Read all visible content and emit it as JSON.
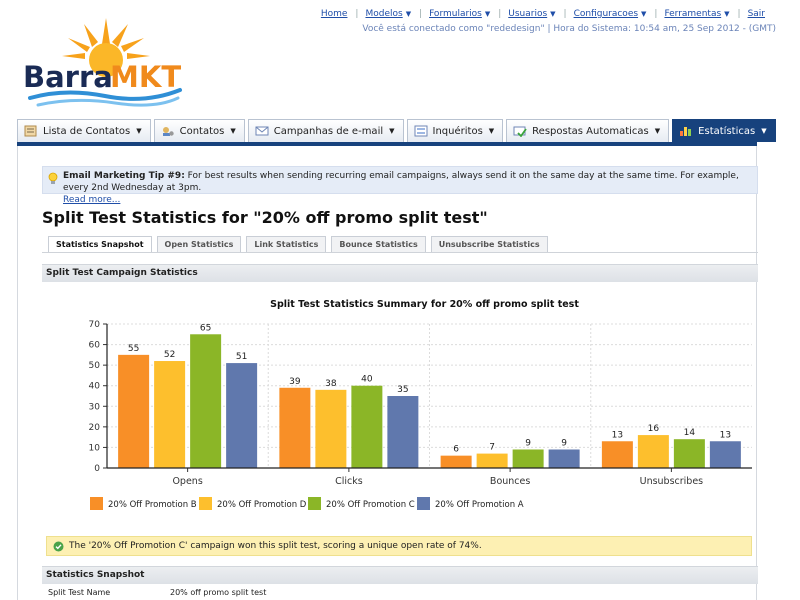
{
  "toplinks": [
    {
      "label": "Home",
      "caret": false
    },
    {
      "label": "Modelos",
      "caret": true
    },
    {
      "label": "Formularios",
      "caret": true
    },
    {
      "label": "Usuarios",
      "caret": true
    },
    {
      "label": "Configuracoes",
      "caret": true
    },
    {
      "label": "Ferramentas",
      "caret": true
    },
    {
      "label": "Sair",
      "caret": false
    }
  ],
  "status_text": "Você está conectado como \"rededesign\" | Hora do Sistema: 10:54 am, 25 Sep 2012 - (GMT)",
  "logo": {
    "text_main": "Barra",
    "text_accent": "MKT",
    "color_main": "#1a2b55",
    "color_accent": "#f08a1c"
  },
  "nav": [
    {
      "label": "Lista de Contatos",
      "icon": "contacts-icon",
      "active": false
    },
    {
      "label": "Contatos",
      "icon": "contacts-gear-icon",
      "active": false
    },
    {
      "label": "Campanhas de e-mail",
      "icon": "envelope-icon",
      "active": false
    },
    {
      "label": "Inquéritos",
      "icon": "survey-icon",
      "active": false
    },
    {
      "label": "Respostas Automaticas",
      "icon": "autoresponder-icon",
      "active": false
    },
    {
      "label": "Estatísticas",
      "icon": "bar-chart-icon",
      "active": true
    }
  ],
  "tip": {
    "title": "Email Marketing Tip #9:",
    "text": " For best results when sending recurring email campaigns, always send it on the same day at the same time. For example, every 2nd Wednesday at 3pm.",
    "more": "Read more..."
  },
  "page_title": "Split Test Statistics for \"20% off promo split test\"",
  "subtabs": [
    {
      "label": "Statistics Snapshot",
      "active": true
    },
    {
      "label": "Open Statistics",
      "active": false
    },
    {
      "label": "Link Statistics",
      "active": false
    },
    {
      "label": "Bounce Statistics",
      "active": false
    },
    {
      "label": "Unsubscribe Statistics",
      "active": false
    }
  ],
  "section1": "Split Test Campaign Statistics",
  "chart_data": {
    "type": "bar",
    "title": "Split Test Statistics Summary for 20% off promo split test",
    "categories": [
      "Opens",
      "Clicks",
      "Bounces",
      "Unsubscribes"
    ],
    "series": [
      {
        "name": "20% Off Promotion B",
        "color": "#f88f27",
        "values": [
          55,
          39,
          6,
          13
        ]
      },
      {
        "name": "20% Off Promotion D",
        "color": "#fdbf2d",
        "values": [
          52,
          38,
          7,
          16
        ]
      },
      {
        "name": "20% Off Promotion C",
        "color": "#8bb627",
        "values": [
          65,
          40,
          9,
          14
        ]
      },
      {
        "name": "20% Off Promotion A",
        "color": "#6078ad",
        "values": [
          51,
          35,
          9,
          13
        ]
      }
    ],
    "ylim": [
      0,
      70
    ],
    "yticks": [
      0,
      10,
      20,
      30,
      40,
      50,
      60,
      70
    ],
    "grid": true,
    "legend_position": "bottom"
  },
  "winner_text": "The '20% Off Promotion C' campaign won this split test, scoring a unique open rate of 74%.",
  "section2": "Statistics Snapshot",
  "snapshot": [
    {
      "key": "Split Test Name",
      "value": "20% off promo split test"
    }
  ]
}
